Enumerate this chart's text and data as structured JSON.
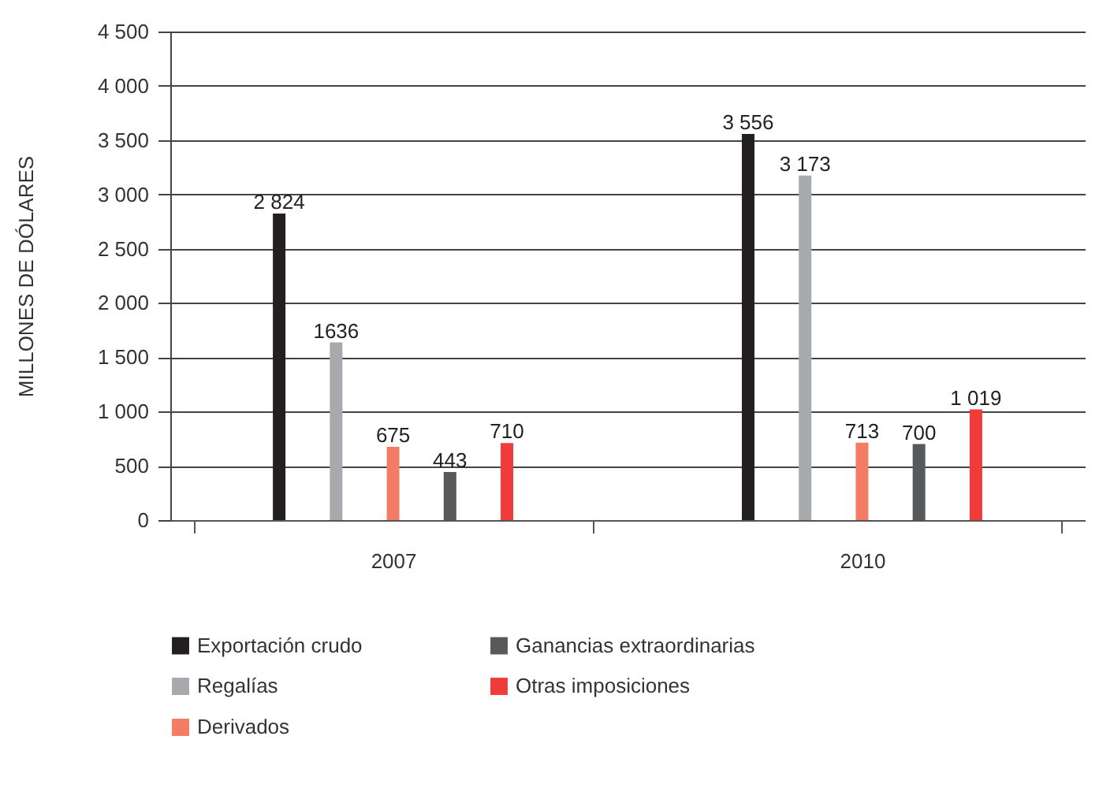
{
  "chart_data": {
    "type": "bar",
    "ylabel": "MILLONES DE DÓLARES",
    "categories": [
      "2007",
      "2010"
    ],
    "series": [
      {
        "name": "Exportación crudo",
        "color": "#231f20",
        "values": [
          2824,
          3556
        ],
        "value_labels": [
          "2 824",
          "3 556"
        ]
      },
      {
        "name": "Regalías",
        "color": "#a7a9ac",
        "values": [
          1636,
          3173
        ],
        "value_labels": [
          "1636",
          "3 173"
        ]
      },
      {
        "name": "Derivados",
        "color": "#f47c64",
        "values": [
          675,
          713
        ],
        "value_labels": [
          "675",
          "713"
        ]
      },
      {
        "name": "Ganancias extraordinarias",
        "color": "#58595b",
        "values": [
          443,
          700
        ],
        "value_labels": [
          "443",
          "700"
        ]
      },
      {
        "name": "Otras imposiciones",
        "color": "#ef3b39",
        "values": [
          710,
          1019
        ],
        "value_labels": [
          "710",
          "1 019"
        ]
      }
    ],
    "ylim": [
      0,
      4500
    ],
    "yticks": [
      0,
      500,
      {
        "value": 1000,
        "label": "1 000"
      },
      {
        "value": 1500,
        "label": "1 500"
      },
      {
        "value": 2000,
        "label": "2 000"
      },
      {
        "value": 2500,
        "label": "2 500"
      },
      {
        "value": 3000,
        "label": "3 000"
      },
      {
        "value": 3500,
        "label": "3 500"
      },
      {
        "value": 4000,
        "label": "4 000"
      },
      {
        "value": 4500,
        "label": "4 500"
      }
    ],
    "grid": "y",
    "legend": "bottom"
  }
}
